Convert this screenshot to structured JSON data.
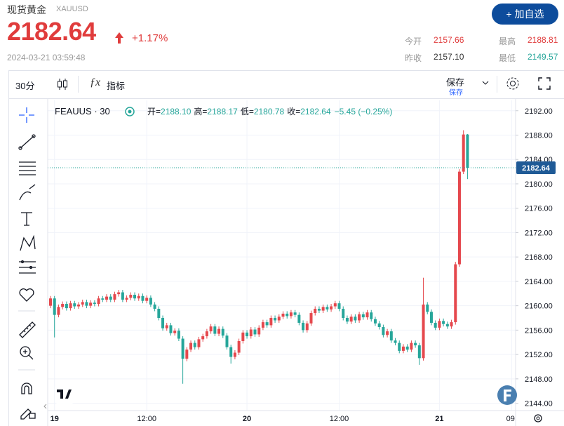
{
  "header": {
    "title": "现货黄金",
    "symbol": "XAUUSD",
    "price": "2182.64",
    "change": "+1.17%",
    "timestamp": "2024-03-21 03:59:48",
    "button": "+ 加自选",
    "stats": [
      {
        "label": "今开",
        "value": "2157.66"
      },
      {
        "label": "最高",
        "value": "2188.81"
      },
      {
        "label": "昨收",
        "value": "2157.10"
      },
      {
        "label": "最低",
        "value": "2149.57"
      }
    ]
  },
  "toolbar": {
    "interval": "30分",
    "indicators": "指标",
    "save": "保存",
    "save_status": "保存"
  },
  "legend": {
    "symbol": "FEAUUS · 30",
    "items": [
      {
        "label": "开=",
        "value": "2188.10"
      },
      {
        "label": "高=",
        "value": "2188.17"
      },
      {
        "label": "低=",
        "value": "2180.78"
      },
      {
        "label": "收=",
        "value": "2182.64"
      }
    ],
    "change": "−5.45 (−0.25%)"
  },
  "chart_data": {
    "type": "candlestick",
    "categories": [
      null,
      "19",
      null,
      null,
      null,
      null,
      null,
      null,
      null,
      null,
      null,
      null,
      null,
      null,
      null,
      null,
      null,
      null,
      null,
      null,
      null,
      null,
      null,
      null,
      "12:00",
      null,
      null,
      null,
      null,
      null,
      null,
      null,
      null,
      null,
      null,
      null,
      null,
      null,
      null,
      null,
      null,
      null,
      null,
      null,
      null,
      null,
      null,
      null,
      null,
      "20",
      null,
      null,
      null,
      null,
      null,
      null,
      null,
      null,
      null,
      null,
      null,
      null,
      null,
      null,
      null,
      null,
      null,
      null,
      null,
      null,
      null,
      null,
      "12:00",
      null,
      null,
      null,
      null,
      null,
      null,
      null,
      null,
      null,
      null,
      null,
      null,
      null,
      null,
      null,
      null,
      null,
      null,
      null,
      null,
      null,
      null,
      null,
      null,
      "21",
      null,
      null,
      null,
      null,
      null,
      null,
      null,
      null,
      null,
      null,
      null,
      null,
      null,
      null,
      null,
      null,
      null,
      "09:"
    ],
    "open": [
      2160.0,
      2161.2,
      2158.5,
      2159.8,
      2160.3,
      2159.6,
      2160.4,
      2159.9,
      2160.2,
      2160.6,
      2160.0,
      2160.5,
      2160.3,
      2161.2,
      2161.0,
      2161.5,
      2161.0,
      2161.9,
      2162.2,
      2161.0,
      2161.3,
      2161.8,
      2161.2,
      2161.6,
      2160.8,
      2161.3,
      2160.2,
      2159.5,
      2158.0,
      2156.3,
      2156.8,
      2155.5,
      2155.9,
      2154.6,
      2151.3,
      2152.8,
      2153.9,
      2153.2,
      2154.5,
      2155.0,
      2155.8,
      2156.6,
      2155.4,
      2156.2,
      2155.1,
      2153.2,
      2151.6,
      2152.3,
      2154.2,
      2155.6,
      2155.0,
      2156.1,
      2155.3,
      2156.4,
      2157.3,
      2156.8,
      2158.0,
      2157.6,
      2158.2,
      2158.7,
      2158.3,
      2158.9,
      2158.5,
      2157.2,
      2156.0,
      2157.1,
      2158.8,
      2159.5,
      2159.2,
      2159.8,
      2159.4,
      2159.9,
      2160.4,
      2159.5,
      2158.0,
      2157.4,
      2158.2,
      2157.6,
      2158.6,
      2158.1,
      2158.9,
      2157.8,
      2157.1,
      2156.5,
      2155.2,
      2155.8,
      2154.3,
      2153.9,
      2152.6,
      2153.3,
      2152.8,
      2153.9,
      2153.5,
      2151.4,
      2160.2,
      2159.0,
      2157.2,
      2156.4,
      2157.5,
      2157.0,
      2156.6,
      2157.3,
      2166.8,
      2182.0,
      2188.1,
      null,
      null,
      null,
      null,
      null,
      null,
      null,
      null,
      null,
      null,
      null
    ],
    "high": [
      2161.6,
      2161.6,
      2160.2,
      2160.7,
      2160.7,
      2160.8,
      2160.8,
      2160.6,
      2161.0,
      2161.0,
      2160.9,
      2160.9,
      2161.6,
      2161.6,
      2161.9,
      2161.9,
      2162.3,
      2162.6,
      2162.6,
      2161.7,
      2162.2,
      2162.2,
      2162.0,
      2162.0,
      2161.7,
      2161.7,
      2160.6,
      2159.9,
      2158.4,
      2157.2,
      2157.2,
      2156.3,
      2156.3,
      2155.0,
      2153.2,
      2154.3,
      2154.3,
      2154.9,
      2155.4,
      2156.2,
      2157.0,
      2157.0,
      2156.6,
      2156.6,
      2155.5,
      2153.6,
      2152.7,
      2154.6,
      2156.0,
      2156.0,
      2156.5,
      2156.5,
      2156.8,
      2157.7,
      2157.7,
      2158.4,
      2158.4,
      2158.6,
      2159.1,
      2159.1,
      2159.3,
      2159.3,
      2158.9,
      2157.6,
      2157.5,
      2159.2,
      2159.9,
      2159.9,
      2160.2,
      2160.2,
      2160.3,
      2160.8,
      2160.8,
      2159.9,
      2158.4,
      2158.6,
      2158.6,
      2159.0,
      2159.0,
      2159.3,
      2159.3,
      2158.2,
      2157.5,
      2156.9,
      2156.2,
      2156.2,
      2154.7,
      2154.3,
      2153.7,
      2153.7,
      2154.3,
      2154.3,
      2153.9,
      2164.6,
      2160.6,
      2159.4,
      2157.6,
      2157.9,
      2157.9,
      2157.4,
      2157.7,
      2167.2,
      2182.4,
      2188.8,
      2188.17,
      null,
      null,
      null,
      null,
      null,
      null,
      null,
      null,
      null,
      null,
      null
    ],
    "low": [
      2159.6,
      2154.8,
      2158.1,
      2159.4,
      2159.2,
      2159.2,
      2159.5,
      2159.5,
      2159.8,
      2159.6,
      2159.6,
      2159.9,
      2159.9,
      2160.6,
      2160.6,
      2160.6,
      2160.6,
      2161.5,
      2160.6,
      2160.6,
      2160.9,
      2160.8,
      2160.8,
      2160.4,
      2160.4,
      2159.8,
      2159.1,
      2157.6,
      2155.9,
      2155.9,
      2155.1,
      2155.1,
      2154.2,
      2147.2,
      2150.9,
      2152.4,
      2152.8,
      2152.8,
      2154.1,
      2154.6,
      2155.4,
      2155.0,
      2155.0,
      2154.7,
      2152.8,
      2150.5,
      2151.2,
      2151.9,
      2153.8,
      2154.6,
      2154.6,
      2154.9,
      2154.9,
      2156.0,
      2156.4,
      2156.4,
      2157.2,
      2157.2,
      2157.8,
      2157.9,
      2157.9,
      2158.1,
      2156.8,
      2155.6,
      2155.6,
      2156.7,
      2158.4,
      2158.8,
      2158.8,
      2159.0,
      2159.0,
      2159.5,
      2159.1,
      2157.6,
      2157.0,
      2157.0,
      2157.2,
      2157.2,
      2157.7,
      2157.7,
      2157.4,
      2156.7,
      2156.1,
      2154.8,
      2154.8,
      2153.9,
      2153.5,
      2152.2,
      2152.2,
      2152.4,
      2152.4,
      2153.1,
      2150.3,
      2151.0,
      2158.6,
      2156.8,
      2156.0,
      2156.0,
      2156.6,
      2156.2,
      2156.2,
      2156.9,
      2166.4,
      2181.6,
      2180.78,
      null,
      null,
      null,
      null,
      null,
      null,
      null,
      null,
      null,
      null,
      null
    ],
    "close": [
      2161.2,
      2158.5,
      2159.8,
      2160.3,
      2159.6,
      2160.4,
      2159.9,
      2160.2,
      2160.6,
      2160.0,
      2160.5,
      2160.3,
      2161.2,
      2161.0,
      2161.5,
      2161.0,
      2161.9,
      2162.2,
      2161.0,
      2161.3,
      2161.8,
      2161.2,
      2161.6,
      2160.8,
      2161.3,
      2160.2,
      2159.5,
      2158.0,
      2156.3,
      2156.8,
      2155.5,
      2155.9,
      2154.6,
      2151.3,
      2152.8,
      2153.9,
      2153.2,
      2154.5,
      2155.0,
      2155.8,
      2156.6,
      2155.4,
      2156.2,
      2155.1,
      2153.2,
      2151.6,
      2152.3,
      2154.2,
      2155.6,
      2155.0,
      2156.1,
      2155.3,
      2156.4,
      2157.3,
      2156.8,
      2158.0,
      2157.6,
      2158.2,
      2158.7,
      2158.3,
      2158.9,
      2158.5,
      2157.2,
      2156.0,
      2157.1,
      2158.8,
      2159.5,
      2159.2,
      2159.8,
      2159.4,
      2159.9,
      2160.4,
      2159.5,
      2158.0,
      2157.4,
      2158.2,
      2157.6,
      2158.6,
      2158.1,
      2158.9,
      2157.8,
      2157.1,
      2156.5,
      2155.2,
      2155.8,
      2154.3,
      2153.9,
      2152.6,
      2153.3,
      2152.8,
      2153.9,
      2153.5,
      2151.4,
      2160.2,
      2159.0,
      2157.2,
      2156.4,
      2157.5,
      2157.0,
      2156.6,
      2157.3,
      2166.8,
      2182.0,
      2188.1,
      2182.64,
      null,
      null,
      null,
      null,
      null,
      null,
      null,
      null,
      null,
      null,
      null
    ],
    "up_color": "#e5484d",
    "down_color": "#26a69a",
    "ylim": [
      2142.8,
      2193.7
    ],
    "yticks": [
      {
        "value": 2144,
        "label": "2144.00"
      },
      {
        "value": 2148,
        "label": "2148.00"
      },
      {
        "value": 2152,
        "label": "2152.00"
      },
      {
        "value": 2156,
        "label": "2156.00"
      },
      {
        "value": 2160,
        "label": "2160.00"
      },
      {
        "value": 2164,
        "label": "2164.00"
      },
      {
        "value": 2168,
        "label": "2168.00"
      },
      {
        "value": 2172,
        "label": "2172.00"
      },
      {
        "value": 2176,
        "label": "2176.00"
      },
      {
        "value": 2180,
        "label": "2180.00"
      },
      {
        "value": 2184,
        "label": "2184.00"
      },
      {
        "value": 2188,
        "label": "2188.00"
      },
      {
        "value": 2192,
        "label": "2192.00"
      }
    ],
    "grid": true
  }
}
